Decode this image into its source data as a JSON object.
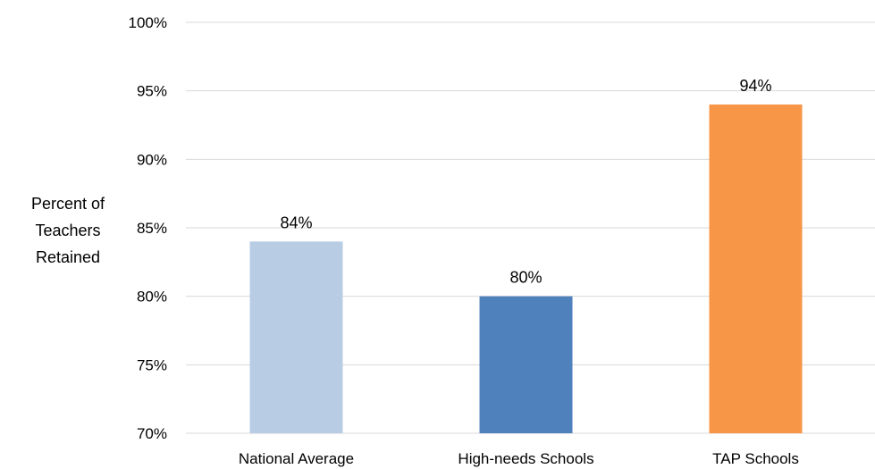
{
  "chart_data": {
    "type": "bar",
    "title": "",
    "xlabel": "",
    "ylabel_lines": [
      "Percent of",
      "Teachers",
      "Retained"
    ],
    "ylim": [
      70,
      100
    ],
    "ytick_step": 5,
    "ytick_labels": [
      "70%",
      "75%",
      "80%",
      "85%",
      "90%",
      "95%",
      "100%"
    ],
    "categories": [
      "National Average",
      "High-needs Schools",
      "TAP Schools"
    ],
    "values": [
      84,
      80,
      94
    ],
    "data_labels": [
      "84%",
      "80%",
      "94%"
    ],
    "colors": [
      "#b8cce4",
      "#4f81bd",
      "#f79646"
    ],
    "grid": true,
    "legend": "none"
  }
}
